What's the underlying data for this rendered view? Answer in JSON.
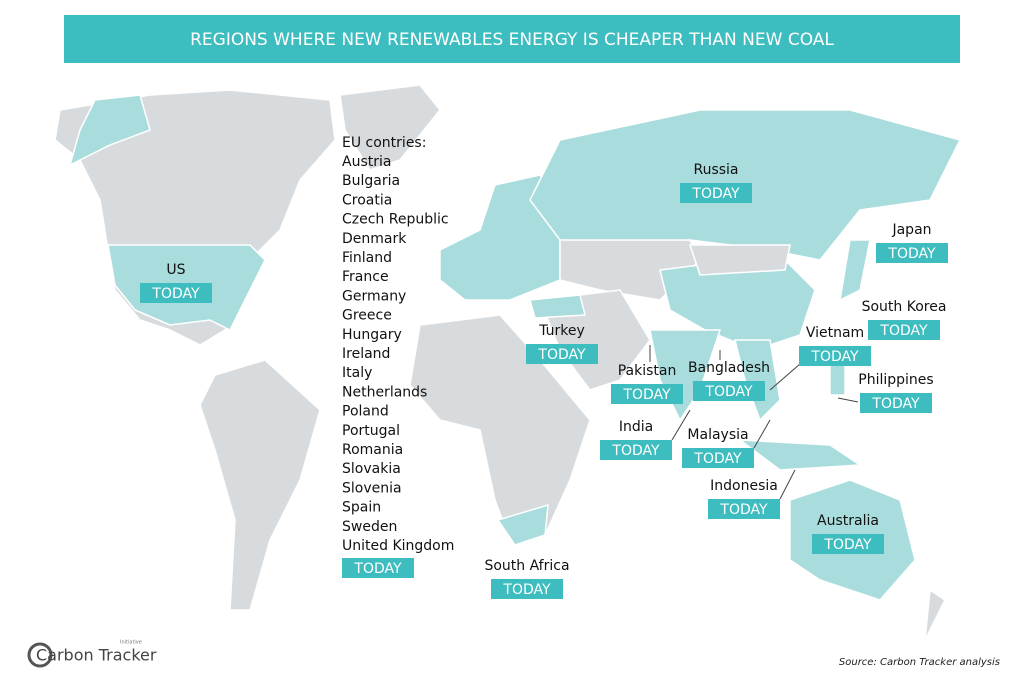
{
  "title": "REGIONS WHERE NEW RENEWABLES ENERGY IS CHEAPER THAN NEW COAL",
  "eu": {
    "heading": "EU contries:",
    "countries": [
      "Austria",
      "Bulgaria",
      "Croatia",
      "Czech Republic",
      "Denmark",
      "Finland",
      "France",
      "Germany",
      "Greece",
      "Hungary",
      "Ireland",
      "Italy",
      "Netherlands",
      "Poland",
      "Portugal",
      "Romania",
      "Slovakia",
      "Slovenia",
      "Spain",
      "Sweden",
      "United Kingdom"
    ],
    "status": "TODAY"
  },
  "regions": [
    {
      "name": "US",
      "status": "TODAY"
    },
    {
      "name": "Russia",
      "status": "TODAY"
    },
    {
      "name": "Japan",
      "status": "TODAY"
    },
    {
      "name": "South Korea",
      "status": "TODAY"
    },
    {
      "name": "Vietnam",
      "status": "TODAY"
    },
    {
      "name": "Turkey",
      "status": "TODAY"
    },
    {
      "name": "Pakistan",
      "status": "TODAY"
    },
    {
      "name": "Bangladesh",
      "status": "TODAY"
    },
    {
      "name": "Philippines",
      "status": "TODAY"
    },
    {
      "name": "India",
      "status": "TODAY"
    },
    {
      "name": "Malaysia",
      "status": "TODAY"
    },
    {
      "name": "Indonesia",
      "status": "TODAY"
    },
    {
      "name": "Australia",
      "status": "TODAY"
    },
    {
      "name": "South Africa",
      "status": "TODAY"
    }
  ],
  "source": "Source: Carbon Tracker analysis",
  "logo": {
    "name": "Carbon Tracker",
    "tagline": "Initiative"
  }
}
